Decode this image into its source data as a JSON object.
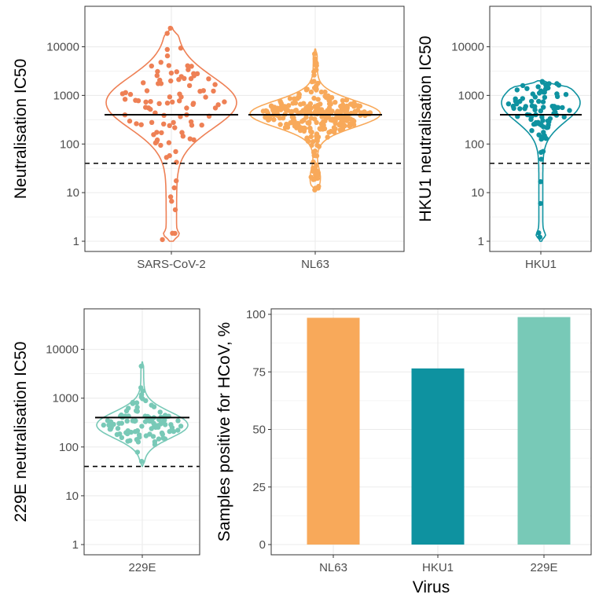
{
  "colors": {
    "SARS-CoV-2": "#ee8055",
    "NL63": "#f8a95a",
    "HKU1": "#0e92a0",
    "229E": "#78c9b7",
    "grid": "#ebebeb",
    "panel_border": "#333333",
    "tick_text": "#4d4d4d"
  },
  "chart_data": [
    {
      "type": "violin",
      "ylabel": "Neutralisation IC50",
      "y_scale": "log10",
      "ylim": [
        1,
        30000
      ],
      "y_ticks": [
        1,
        10,
        100,
        1000,
        10000
      ],
      "y_tick_labels": [
        "1",
        "10",
        "100",
        "1000",
        "10000"
      ],
      "categories": [
        "SARS-CoV-2",
        "NL63"
      ],
      "threshold_dashed": 40,
      "groups": [
        {
          "name": "SARS-CoV-2",
          "min": 1,
          "max": 25000,
          "median": 400,
          "n_points": 100
        },
        {
          "name": "NL63",
          "min": 11,
          "max": 9000,
          "median": 400,
          "n_points": 300
        }
      ]
    },
    {
      "type": "violin",
      "ylabel": "HKU1 neutralisation IC50",
      "y_scale": "log10",
      "ylim": [
        1,
        30000
      ],
      "y_ticks": [
        1,
        10,
        100,
        1000,
        10000
      ],
      "y_tick_labels": [
        "1",
        "10",
        "100",
        "1000",
        "10000"
      ],
      "categories": [
        "HKU1"
      ],
      "threshold_dashed": 40,
      "groups": [
        {
          "name": "HKU1",
          "min": 1,
          "max": 2000,
          "median": 400,
          "n_points": 90
        }
      ]
    },
    {
      "type": "violin",
      "ylabel": "229E neutralisation IC50",
      "y_scale": "log10",
      "ylim": [
        1,
        30000
      ],
      "y_ticks": [
        1,
        10,
        100,
        1000,
        10000
      ],
      "y_tick_labels": [
        "1",
        "10",
        "100",
        "1000",
        "10000"
      ],
      "categories": [
        "229E"
      ],
      "threshold_dashed": 40,
      "groups": [
        {
          "name": "229E",
          "min": 40,
          "max": 5500,
          "median": 400,
          "n_points": 100
        }
      ]
    },
    {
      "type": "bar",
      "xlabel": "Virus",
      "ylabel": "Samples positive for HCoV, %",
      "categories": [
        "NL63",
        "HKU1",
        "229E"
      ],
      "values": [
        98.5,
        76.5,
        98.8
      ],
      "ylim": [
        0,
        100
      ],
      "y_ticks": [
        0,
        25,
        50,
        75,
        100
      ],
      "y_tick_labels": [
        "0",
        "25",
        "50",
        "75",
        "100"
      ]
    }
  ]
}
